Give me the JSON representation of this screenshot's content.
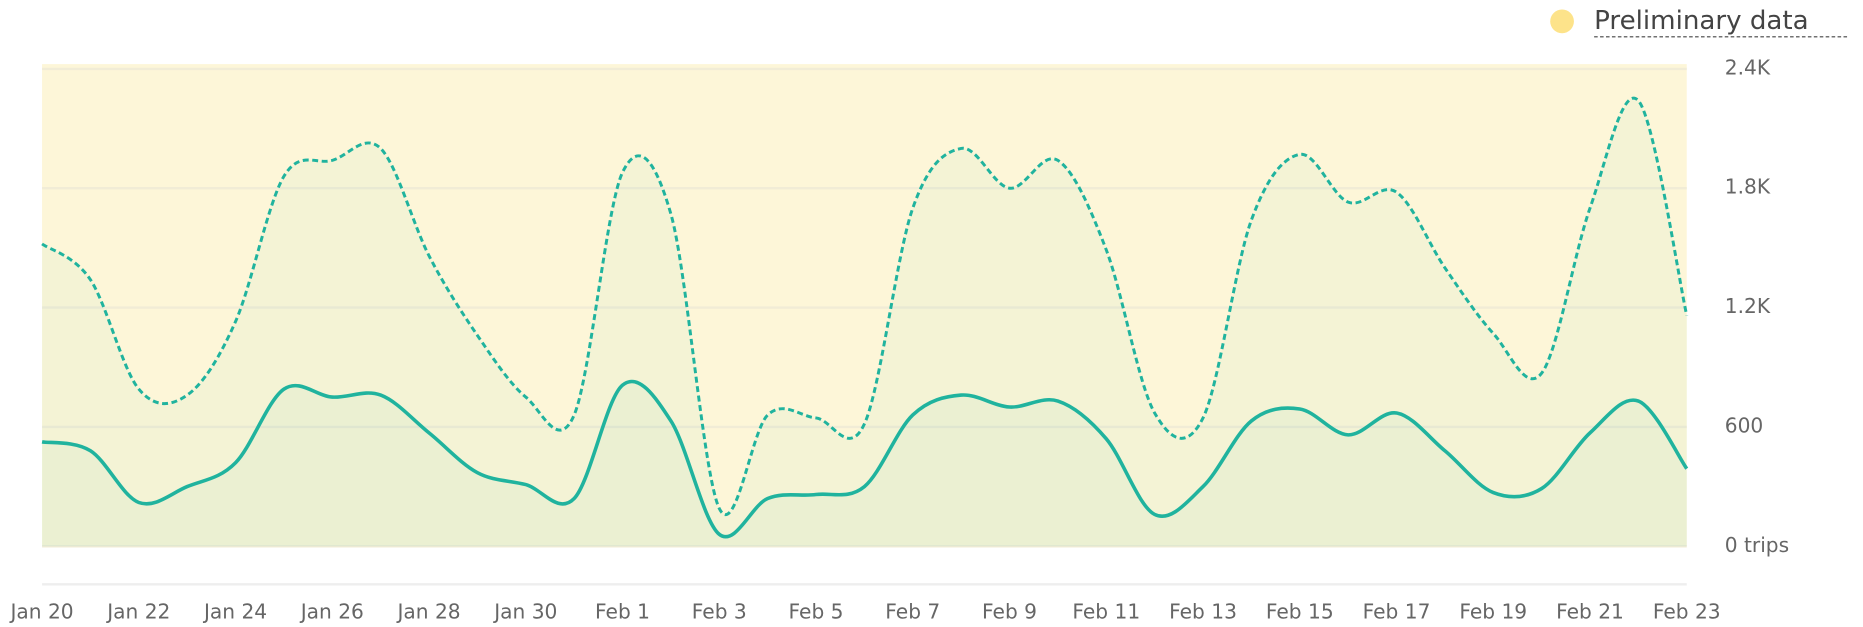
{
  "legend": {
    "label": "Preliminary data",
    "color": "#fde38a"
  },
  "chart_data": {
    "type": "line",
    "categories": [
      "Jan 20",
      null,
      "Jan 22",
      null,
      "Jan 24",
      null,
      "Jan 26",
      null,
      "Jan 28",
      null,
      "Jan 30",
      null,
      "Feb 1",
      null,
      "Feb 3",
      null,
      "Feb 5",
      null,
      "Feb 7",
      null,
      "Feb 9",
      null,
      "Feb 11",
      null,
      "Feb 13",
      null,
      "Feb 15",
      null,
      "Feb 17",
      null,
      "Feb 19",
      null,
      "Feb 21",
      null,
      "Feb 23"
    ],
    "series": [
      {
        "color": "#20b39e",
        "dashed": true,
        "values": [
          1520,
          1340,
          790,
          760,
          1130,
          1860,
          1940,
          2000,
          1460,
          1060,
          750,
          660,
          1880,
          1670,
          190,
          660,
          645,
          615,
          1700,
          2000,
          1800,
          1940,
          1490,
          670,
          645,
          1640,
          1970,
          1730,
          1780,
          1400,
          1070,
          870,
          1700,
          2240,
          1160
        ]
      },
      {
        "color": "#20b39e",
        "dashed": false,
        "values": [
          525,
          480,
          220,
          300,
          420,
          790,
          750,
          760,
          570,
          370,
          310,
          240,
          810,
          630,
          60,
          240,
          260,
          300,
          660,
          760,
          700,
          730,
          540,
          160,
          300,
          630,
          690,
          560,
          670,
          480,
          270,
          290,
          570,
          730,
          390
        ]
      }
    ],
    "ylim": [
      0,
      2400
    ],
    "yticks": [
      {
        "value": 0,
        "label": "0 trips"
      },
      600,
      {
        "value": 1200,
        "label": "1.2K"
      },
      {
        "value": 1800,
        "label": "1.8K"
      },
      {
        "value": 2400,
        "label": "2.4K"
      }
    ],
    "grid": true,
    "preliminary_color": "#fdf6d8"
  }
}
